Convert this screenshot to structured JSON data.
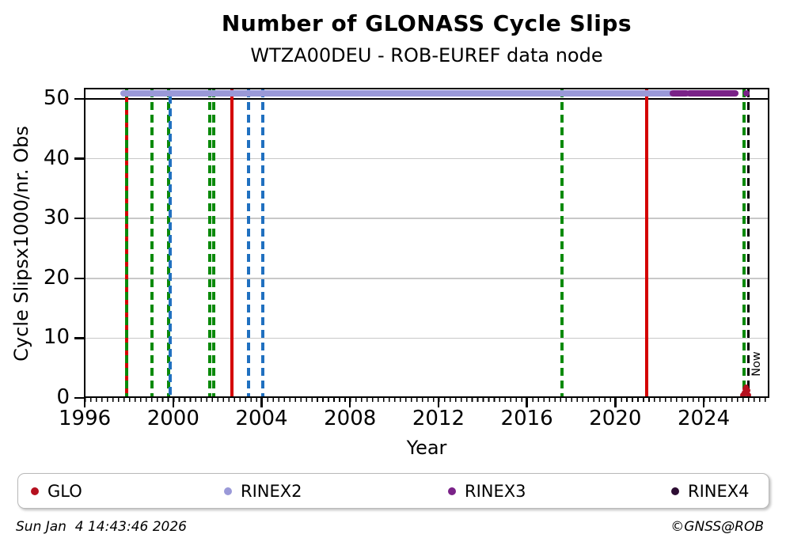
{
  "header": {
    "title": "Number of GLONASS Cycle Slips",
    "subtitle": "WTZA00DEU - ROB-EUREF data node"
  },
  "chart_data": {
    "type": "scatter",
    "title": "Number of GLONASS Cycle Slips",
    "subtitle": "WTZA00DEU - ROB-EUREF data node",
    "xlabel": "Year",
    "ylabel": "Cycle Slipsx1000/nr. Obs",
    "xlim": [
      1995.96,
      2026.97
    ],
    "ylim": [
      0,
      51.85
    ],
    "xticks": [
      1996,
      2000,
      2004,
      2008,
      2012,
      2016,
      2020,
      2024
    ],
    "yticks": [
      0,
      10,
      20,
      30,
      40,
      50
    ],
    "minor_tick_interval_years": 0.25,
    "grid": "horizontal-only",
    "gridline_color": "#c8c8c8",
    "hline_y": 50,
    "series": [
      {
        "name": "GLO",
        "color": "#b5101f",
        "marker_size": 7,
        "points": [
          [
            2025.78,
            0.4
          ],
          [
            2025.83,
            0.9
          ],
          [
            2025.88,
            1.5
          ],
          [
            2025.93,
            1.8
          ],
          [
            2025.98,
            1.2
          ],
          [
            2026.03,
            0.5
          ]
        ]
      },
      {
        "name": "RINEX2",
        "color": "#9a99d8",
        "value": 50.9,
        "segments": [
          [
            1997.76,
            2002.97
          ],
          [
            2003.03,
            2008.38
          ],
          [
            2008.45,
            2022.49
          ]
        ],
        "points": []
      },
      {
        "name": "RINEX3",
        "color": "#7a2288",
        "value": 50.9,
        "segments": [
          [
            2022.6,
            2023.22
          ],
          [
            2023.36,
            2025.42
          ]
        ],
        "points": [
          [
            2025.93,
            50.9
          ]
        ]
      },
      {
        "name": "RINEX4",
        "color": "#2d0d33",
        "segments": [],
        "points": []
      }
    ],
    "event_lines": [
      {
        "year": 1997.9,
        "color": "red",
        "style": "solid"
      },
      {
        "year": 1997.9,
        "color": "green",
        "style": "dashed"
      },
      {
        "year": 1999.04,
        "color": "green",
        "style": "dashed"
      },
      {
        "year": 1999.79,
        "color": "green",
        "style": "dashed"
      },
      {
        "year": 1999.87,
        "color": "blue",
        "style": "dashed",
        "dash_phase": 8
      },
      {
        "year": 2001.66,
        "color": "green",
        "style": "dashed"
      },
      {
        "year": 2001.83,
        "color": "green",
        "style": "dashed"
      },
      {
        "year": 2002.66,
        "color": "red",
        "style": "solid"
      },
      {
        "year": 2003.41,
        "color": "blue",
        "style": "dashed"
      },
      {
        "year": 2004.05,
        "color": "blue",
        "style": "dashed"
      },
      {
        "year": 2017.59,
        "color": "green",
        "style": "dashed"
      },
      {
        "year": 2021.42,
        "color": "red",
        "style": "solid"
      },
      {
        "year": 2025.82,
        "color": "green",
        "style": "dashed"
      },
      {
        "year": 2026.02,
        "color": "black",
        "style": "dashed",
        "label": "Now"
      }
    ],
    "line_colors": {
      "red": "#d40000",
      "green": "#0a8a0a",
      "blue": "#2070c0",
      "black": "#000000"
    }
  },
  "legend": {
    "items": [
      {
        "label": "GLO",
        "color": "#b5101f"
      },
      {
        "label": "RINEX2",
        "color": "#9a99d8"
      },
      {
        "label": "RINEX3",
        "color": "#7a2288"
      },
      {
        "label": "RINEX4",
        "color": "#2d0d33"
      }
    ]
  },
  "footer": {
    "left": "Sun Jan  4 14:43:46 2026",
    "right": "©GNSS@ROB"
  }
}
